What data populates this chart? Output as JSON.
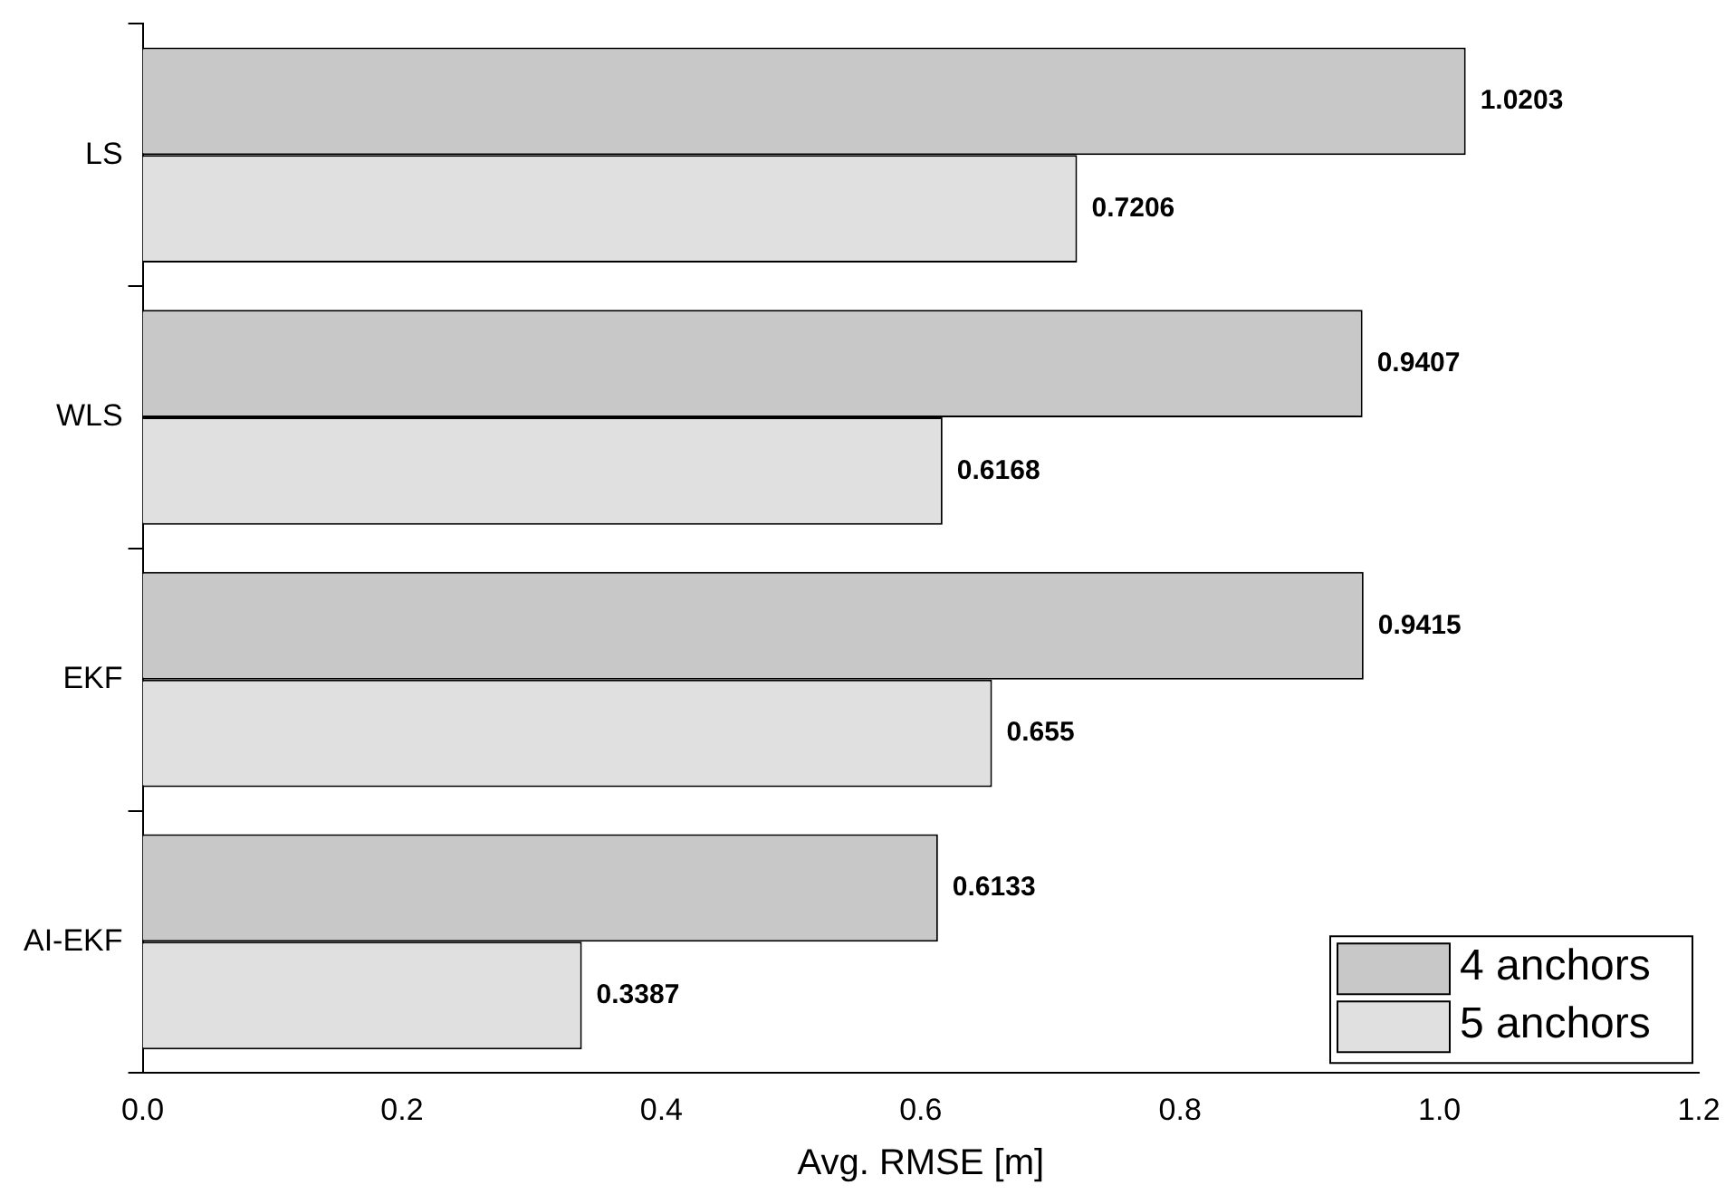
{
  "chart_data": {
    "type": "bar",
    "orientation": "horizontal",
    "xlabel": "Avg. RMSE [m]",
    "categories": [
      "LS",
      "WLS",
      "EKF",
      "AI-EKF"
    ],
    "series": [
      {
        "name": "4 anchors",
        "color": "#c8c8c8",
        "values": [
          1.0203,
          0.9407,
          0.9415,
          0.6133
        ]
      },
      {
        "name": "5 anchors",
        "color": "#e0e0e0",
        "values": [
          0.7206,
          0.6168,
          0.655,
          0.3387
        ]
      }
    ],
    "xlim": [
      0,
      1.2
    ],
    "xticks": [
      {
        "value": 0,
        "label": "0.0"
      },
      {
        "value": 0.2,
        "label": "0.2"
      },
      {
        "value": 0.4,
        "label": "0.4"
      },
      {
        "value": 0.6,
        "label": "0.6"
      },
      {
        "value": 0.8,
        "label": "0.8"
      },
      {
        "value": 1,
        "label": "1.0"
      },
      {
        "value": 1.2,
        "label": "1.2"
      }
    ],
    "data_labels": true,
    "grid": false,
    "legend": "bottom right"
  }
}
